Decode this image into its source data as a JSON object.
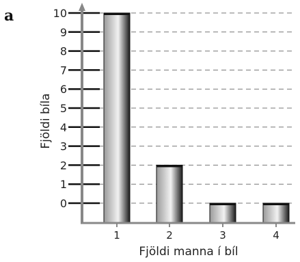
{
  "panel_label": "a",
  "chart_data": {
    "type": "bar",
    "categories": [
      "1",
      "2",
      "3",
      "4"
    ],
    "values": [
      10,
      2,
      0,
      0
    ],
    "xlabel": "Fjöldi manna í bíl",
    "ylabel": "Fjöldi bíla",
    "yticks": [
      "0",
      "1",
      "2",
      "3",
      "4",
      "5",
      "6",
      "7",
      "8",
      "9",
      "10"
    ],
    "ylim": [
      0,
      10
    ],
    "grid": "dashed horizontal",
    "legend": "none",
    "colors": {
      "bar_dark": "#1a1a1a",
      "bar_light": "#f2f2f2",
      "axis": "#888888",
      "grid": "#777777"
    }
  }
}
